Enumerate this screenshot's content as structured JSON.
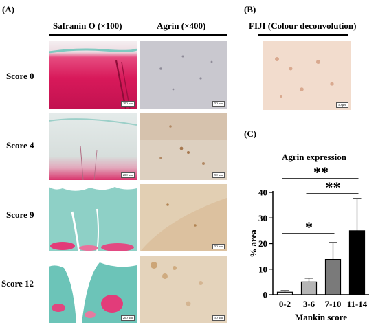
{
  "panels": {
    "a": {
      "label": "(A)",
      "col_headers": [
        "Safranin O (×100)",
        "Agrin (×400)"
      ],
      "rows": [
        {
          "label": "Score 0"
        },
        {
          "label": "Score 4"
        },
        {
          "label": "Score 9"
        },
        {
          "label": "Score 12"
        }
      ],
      "scale_bars": {
        "safranin": "200 µm",
        "agrin": "50 µm"
      }
    },
    "b": {
      "label": "(B)",
      "header": "FIJI (Colour deconvolution)",
      "scale_bar": "50 µm"
    },
    "c": {
      "label": "(C)"
    }
  },
  "colors": {
    "safranin_red": "#d21e57",
    "fast_green": "#5fb6ad",
    "agrin_background": "#dcc3a5",
    "bar_fill": [
      "#ffffff",
      "#b5b5b5",
      "#7a7a7a",
      "#000000"
    ]
  },
  "chart_data": {
    "type": "bar",
    "title": "Agrin expression",
    "xlabel": "Mankin score",
    "ylabel": "% area",
    "categories": [
      "0-2",
      "3-6",
      "7-10",
      "11-14"
    ],
    "values": [
      1.0,
      5.0,
      13.8,
      25.0
    ],
    "error_upper": [
      1.6,
      6.5,
      20.4,
      37.6
    ],
    "ylim": [
      0,
      40
    ],
    "yticks": [
      0,
      10,
      20,
      30,
      40
    ],
    "significance": [
      {
        "from": "0-2",
        "to": "11-14",
        "label": "**"
      },
      {
        "from": "3-6",
        "to": "11-14",
        "label": "**"
      },
      {
        "from": "0-2",
        "to": "7-10",
        "label": "*"
      }
    ]
  }
}
